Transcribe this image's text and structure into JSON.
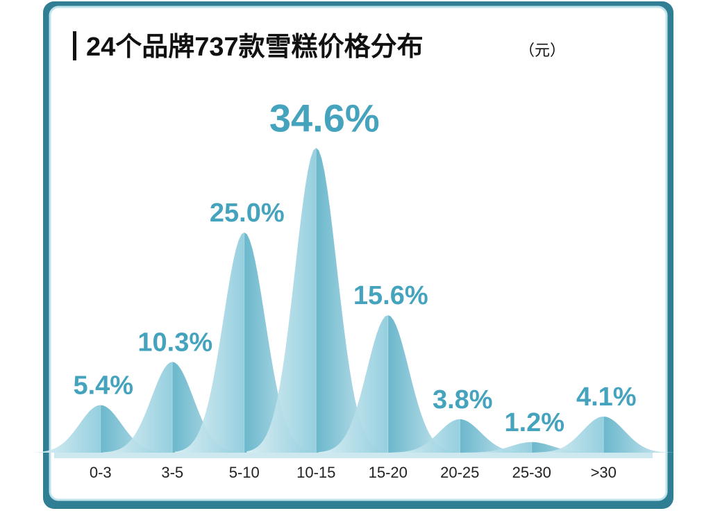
{
  "chart_data": {
    "type": "bar",
    "title": "24个品牌737款雪糕价格分布",
    "subtitle": "（元）",
    "categories": [
      "0-3",
      "3-5",
      "5-10",
      "10-15",
      "15-20",
      "20-25",
      "25-30",
      ">30"
    ],
    "values": [
      5.4,
      10.3,
      25.0,
      34.6,
      15.6,
      3.8,
      1.2,
      4.1
    ],
    "value_labels": [
      "5.4%",
      "10.3%",
      "25.0%",
      "34.6%",
      "15.6%",
      "3.8%",
      "1.2%",
      "4.1%"
    ],
    "color": "#4aa6c0"
  }
}
